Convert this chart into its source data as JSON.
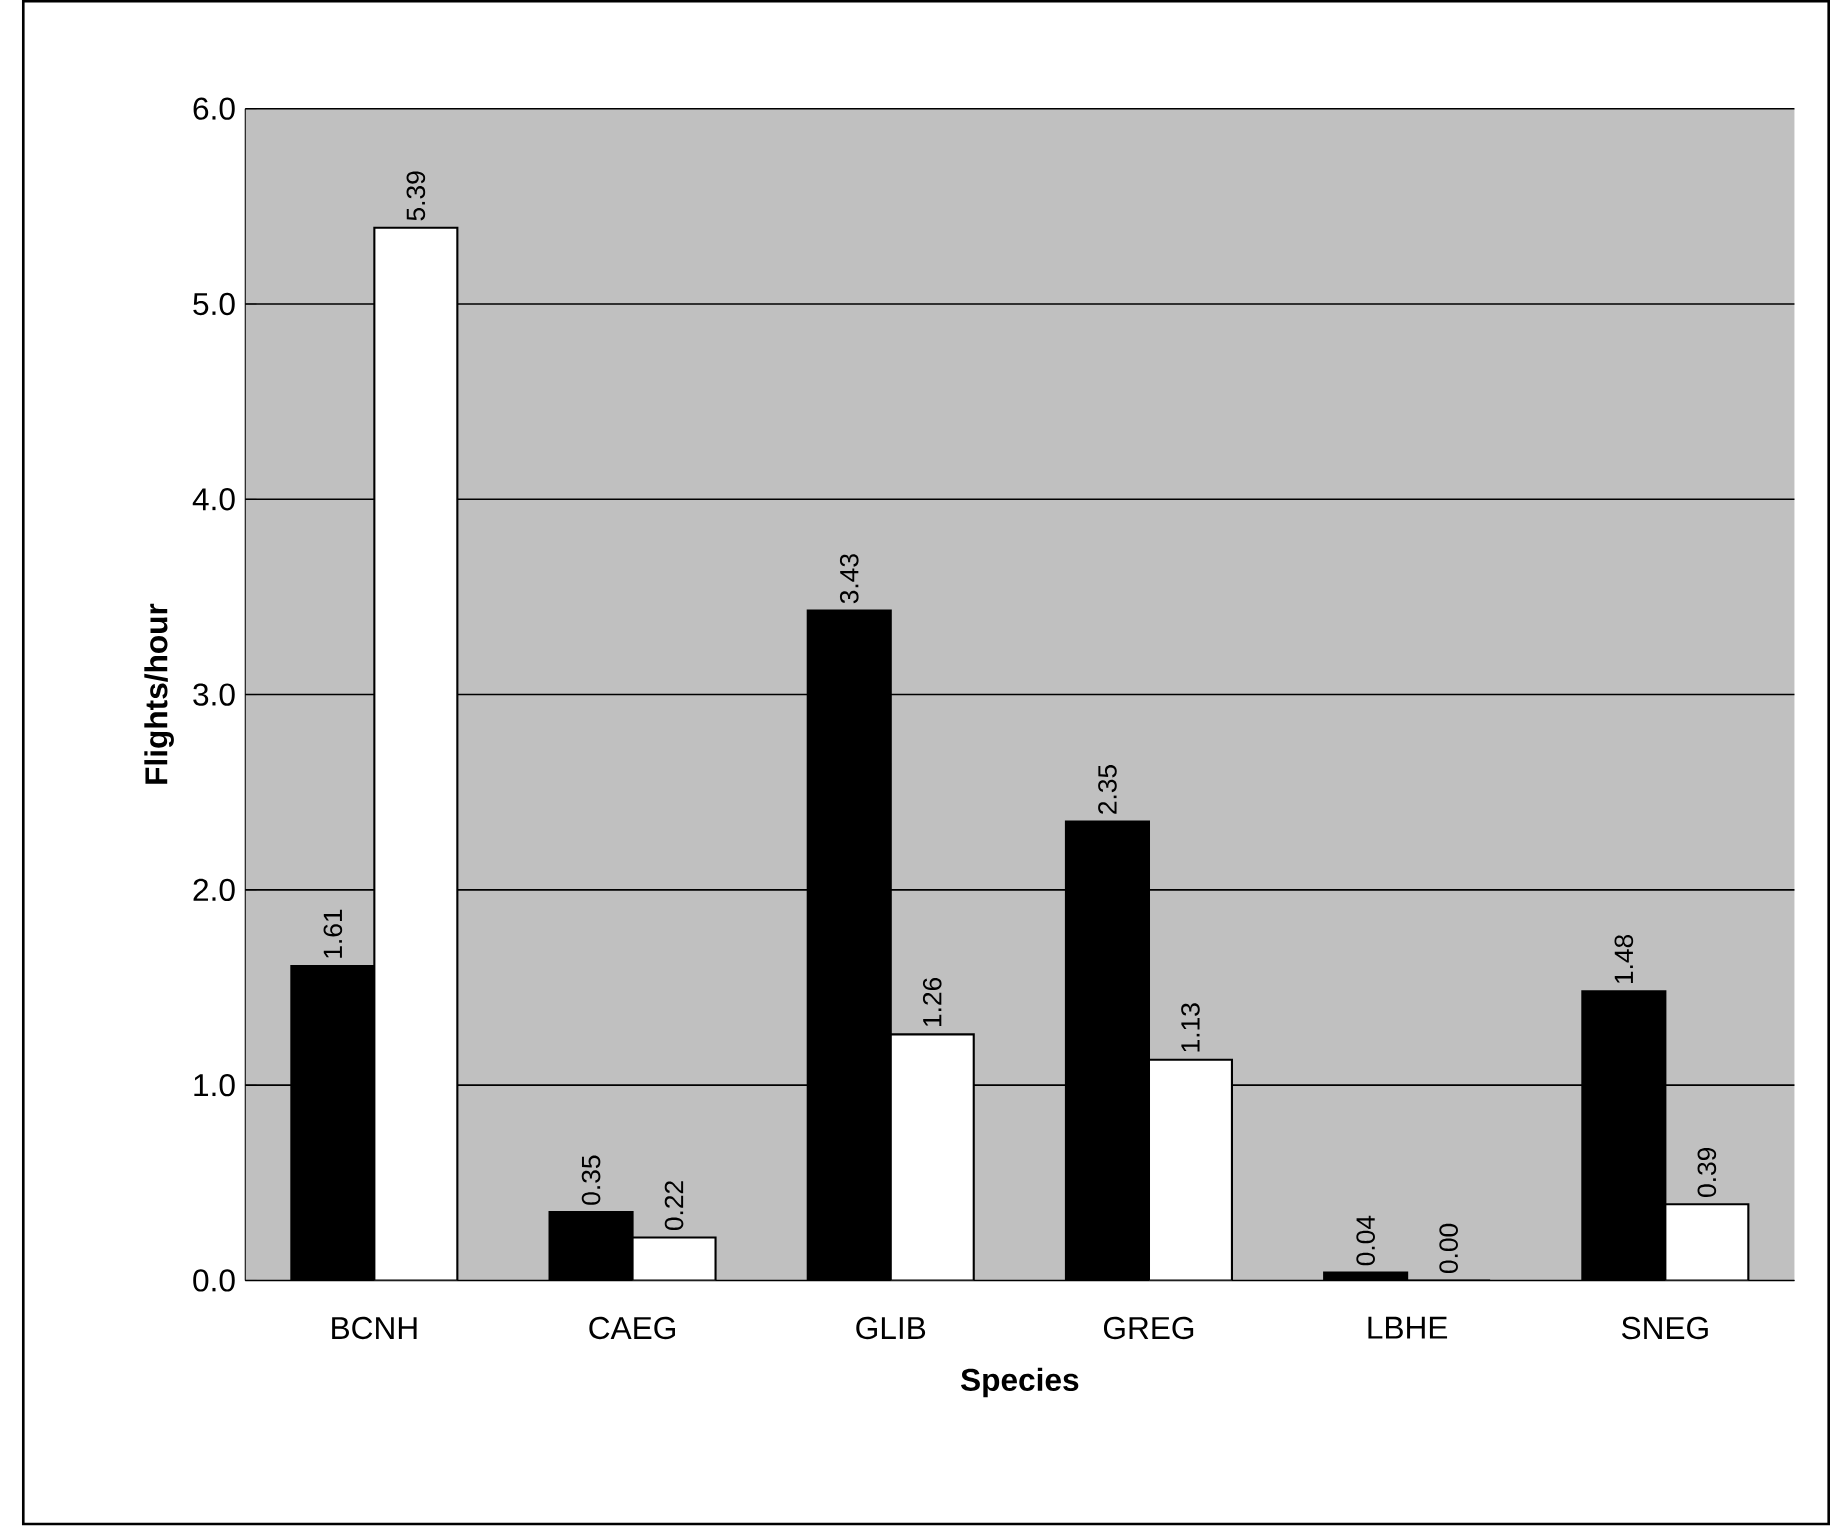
{
  "chart_data": {
    "type": "bar",
    "xlabel": "Species",
    "ylabel": "Flights/hour",
    "categories": [
      "BCNH",
      "CAEG",
      "GLIB",
      "GREG",
      "LBHE",
      "SNEG"
    ],
    "series": [
      {
        "color": "#000000",
        "values": [
          1.61,
          0.35,
          3.43,
          2.35,
          0.04,
          1.48
        ],
        "value_labels": [
          "1.61",
          "0.35",
          "3.43",
          "2.35",
          "0.04",
          "1.48"
        ]
      },
      {
        "color": "#ffffff",
        "values": [
          5.39,
          0.22,
          1.26,
          1.13,
          0.0,
          0.39
        ],
        "value_labels": [
          "5.39",
          "0.22",
          "1.26",
          "1.13",
          "0.00",
          "0.39"
        ]
      }
    ],
    "ylim": [
      0,
      6
    ],
    "yticks": [
      {
        "value": 0,
        "label": "0.0"
      },
      {
        "value": 1,
        "label": "1.0"
      },
      {
        "value": 2,
        "label": "2.0"
      },
      {
        "value": 3,
        "label": "3.0"
      },
      {
        "value": 4,
        "label": "4.0"
      },
      {
        "value": 5,
        "label": "5.0"
      },
      {
        "value": 6,
        "label": "6.0"
      }
    ],
    "grid": "y"
  }
}
